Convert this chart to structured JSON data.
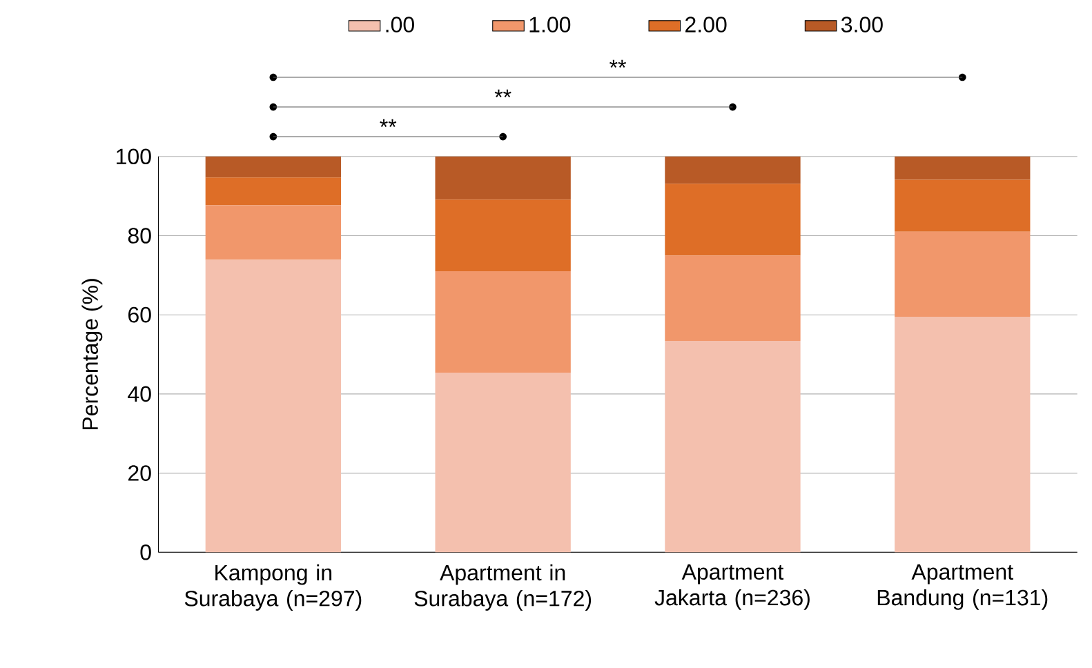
{
  "chart_data": {
    "type": "bar",
    "stacked": true,
    "ylabel": "Percentage (%)",
    "categories": [
      "Kampong in Surabaya (n=297)",
      "Apartment in Surabaya (n=172)",
      "Apartment Jakarta (n=236)",
      "Apartment Bandung (n=131)"
    ],
    "series": [
      {
        "name": ".00",
        "color": "#f4c0ae",
        "values": [
          73.9,
          45.4,
          53.4,
          59.5
        ]
      },
      {
        "name": "1.00",
        "color": "#f1976b",
        "values": [
          13.8,
          25.6,
          21.6,
          21.5
        ]
      },
      {
        "name": "2.00",
        "color": "#de6e27",
        "values": [
          7.0,
          18.1,
          18.1,
          13.1
        ]
      },
      {
        "name": "3.00",
        "color": "#b85a26",
        "values": [
          5.3,
          10.9,
          6.9,
          5.9
        ]
      }
    ],
    "ylim": [
      0,
      100
    ],
    "yticks": [
      0,
      20,
      40,
      60,
      80,
      100
    ],
    "grid": "y",
    "legend": "top",
    "annotations": [
      "**",
      "**",
      "**"
    ]
  }
}
